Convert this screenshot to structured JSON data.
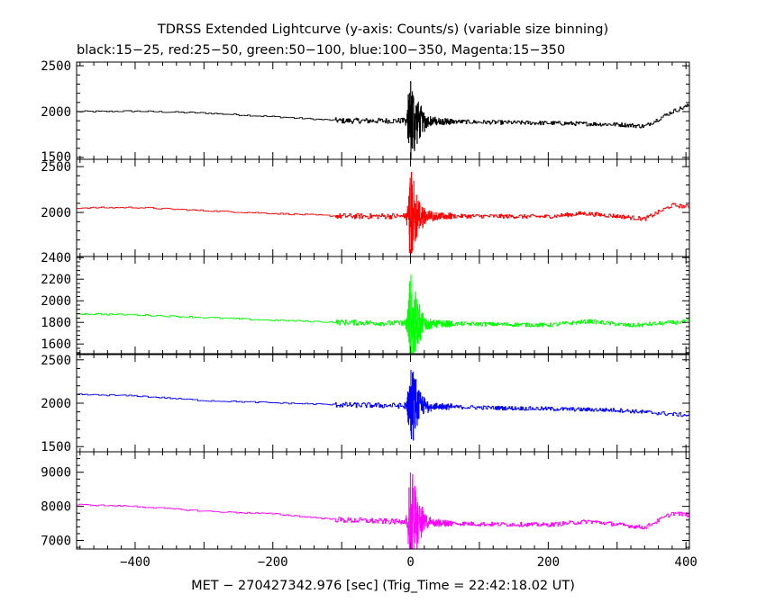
{
  "chart_data": {
    "type": "line",
    "title": "TDRSS Extended Lightcurve (y-axis: Counts/s) (variable size binning)",
    "subtitle": "black:15−25, red:25−50, green:50−100, blue:100−350, Magenta:15−350",
    "xlabel": "MET − 270427342.976 [sec] (Trig_Time = 22:42:18.02 UT)",
    "xlim": [
      -485,
      405
    ],
    "xticks": [
      -400,
      -200,
      0,
      200,
      400
    ],
    "xtick_labels": [
      "−400",
      "−200",
      "0",
      "200",
      "400"
    ],
    "grid": false,
    "panels": [
      {
        "band": "15-25",
        "color": "#000000",
        "ylim": [
          1480,
          2540
        ],
        "yticks": [
          1500,
          2000,
          2500
        ],
        "ytick_labels": [
          "1500",
          "2000",
          "2500"
        ],
        "trend": [
          [
            -485,
            2000
          ],
          [
            -400,
            2005
          ],
          [
            -300,
            1985
          ],
          [
            -200,
            1945
          ],
          [
            -100,
            1900
          ],
          [
            0,
            1900
          ],
          [
            100,
            1885
          ],
          [
            200,
            1875
          ],
          [
            300,
            1860
          ],
          [
            340,
            1840
          ],
          [
            380,
            2000
          ],
          [
            405,
            2070
          ]
        ],
        "noise_pre": 8,
        "noise_post": 30,
        "burst_amp": 560
      },
      {
        "band": "25-50",
        "color": "#ff0000",
        "ylim": [
          1520,
          2580
        ],
        "yticks": [
          2000,
          2500
        ],
        "ytick_labels": [
          "2000",
          "2500"
        ],
        "trend": [
          [
            -485,
            2050
          ],
          [
            -400,
            2055
          ],
          [
            -300,
            2020
          ],
          [
            -200,
            1990
          ],
          [
            -100,
            1960
          ],
          [
            0,
            1960
          ],
          [
            100,
            1960
          ],
          [
            200,
            1955
          ],
          [
            250,
            1990
          ],
          [
            300,
            1960
          ],
          [
            340,
            1930
          ],
          [
            380,
            2080
          ],
          [
            405,
            2060
          ]
        ],
        "noise_pre": 8,
        "noise_post": 30,
        "burst_amp": 540
      },
      {
        "band": "50-100",
        "color": "#00ff00",
        "ylim": [
          1510,
          2410
        ],
        "yticks": [
          1600,
          1800,
          2000,
          2200,
          2400
        ],
        "ytick_labels": [
          "1600",
          "1800",
          "2000",
          "2200",
          "2400"
        ],
        "trend": [
          [
            -485,
            1880
          ],
          [
            -400,
            1870
          ],
          [
            -300,
            1845
          ],
          [
            -200,
            1820
          ],
          [
            -100,
            1800
          ],
          [
            0,
            1790
          ],
          [
            100,
            1785
          ],
          [
            200,
            1775
          ],
          [
            260,
            1810
          ],
          [
            320,
            1770
          ],
          [
            405,
            1810
          ]
        ],
        "noise_pre": 7,
        "noise_post": 25,
        "burst_amp": 480
      },
      {
        "band": "100-350",
        "color": "#0000ff",
        "ylim": [
          1440,
          2560
        ],
        "yticks": [
          1500,
          2000,
          2500
        ],
        "ytick_labels": [
          "1500",
          "2000",
          "2500"
        ],
        "trend": [
          [
            -485,
            2100
          ],
          [
            -400,
            2085
          ],
          [
            -300,
            2030
          ],
          [
            -200,
            2005
          ],
          [
            -100,
            1980
          ],
          [
            0,
            1970
          ],
          [
            100,
            1950
          ],
          [
            200,
            1935
          ],
          [
            300,
            1920
          ],
          [
            405,
            1860
          ]
        ],
        "noise_pre": 8,
        "noise_post": 30,
        "burst_amp": 560
      },
      {
        "band": "15-350",
        "color": "#ff00ff",
        "ylim": [
          6750,
          9600
        ],
        "yticks": [
          7000,
          8000,
          9000
        ],
        "ytick_labels": [
          "7000",
          "8000",
          "9000"
        ],
        "trend": [
          [
            -485,
            8050
          ],
          [
            -400,
            8000
          ],
          [
            -300,
            7860
          ],
          [
            -200,
            7780
          ],
          [
            -100,
            7600
          ],
          [
            0,
            7540
          ],
          [
            100,
            7480
          ],
          [
            200,
            7460
          ],
          [
            260,
            7560
          ],
          [
            340,
            7380
          ],
          [
            380,
            7800
          ],
          [
            405,
            7750
          ]
        ],
        "noise_pre": 20,
        "noise_post": 80,
        "burst_amp": 1750
      }
    ]
  }
}
